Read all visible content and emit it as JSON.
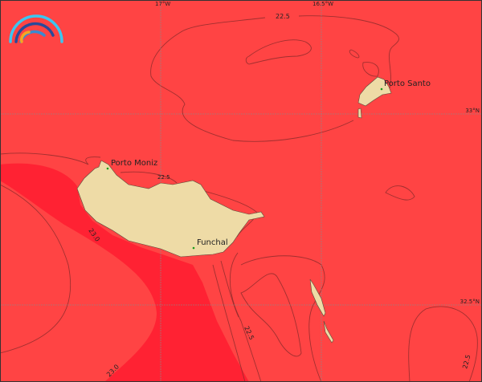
{
  "map": {
    "colors": {
      "sea_low": "#ff4444",
      "sea_high": "#ff2233",
      "land": "#eedba6",
      "city_marker": "#1a9a1a"
    },
    "grid_labels": {
      "lon": [
        "17°W",
        "16.5°W"
      ],
      "lat": [
        "33°N",
        "32.5°N"
      ]
    },
    "contour_labels": [
      "22.5",
      "22.5",
      "23.0",
      "23.0",
      "22.5",
      "22.5"
    ],
    "places": [
      {
        "name": "Porto Santo"
      },
      {
        "name": "Porto Moniz"
      },
      {
        "name": "Funchal"
      }
    ],
    "logo": {
      "icon": "rainbow-arcs-logo",
      "colors": [
        "#3cc6f0",
        "#2a4a9a",
        "#3a8ad0",
        "#f5a623"
      ]
    }
  }
}
